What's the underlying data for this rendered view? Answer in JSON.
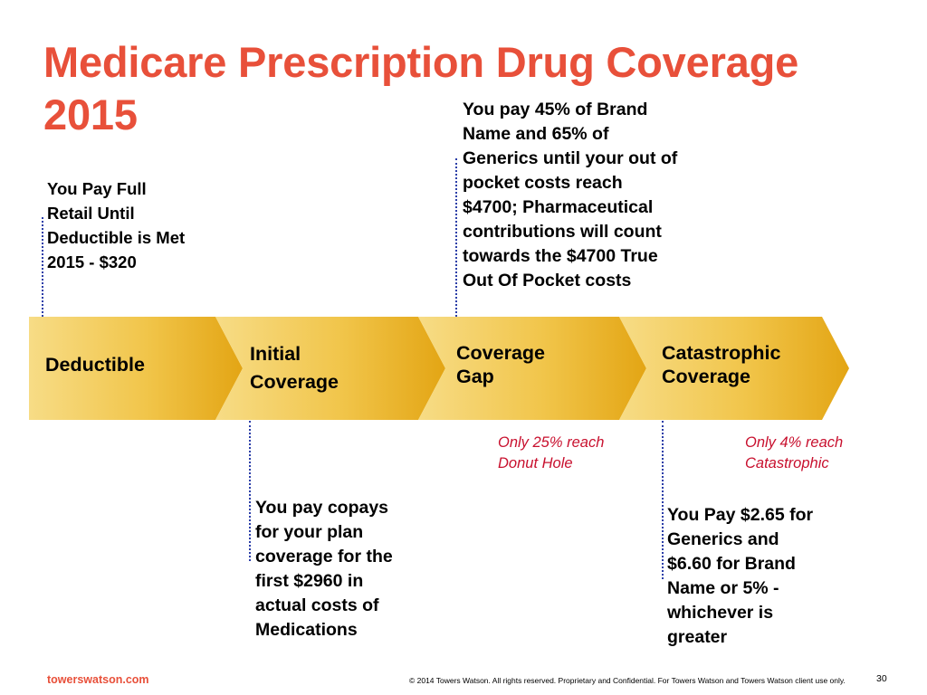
{
  "title": {
    "line1": "Medicare Prescription Drug Coverage",
    "line2": "2015"
  },
  "notes": {
    "deductible": [
      "You Pay Full",
      "Retail Until",
      "Deductible is Met",
      "2015 - $320"
    ],
    "coverage_gap": [
      "You pay 45% of Brand",
      "Name and  65% of",
      "Generics until your out of",
      "pocket costs reach",
      "$4700; Pharmaceutical",
      "contributions will count",
      "towards the $4700 True",
      "Out Of Pocket costs"
    ],
    "initial_coverage": [
      "You pay copays",
      "for your plan",
      "coverage for the",
      "first $2960 in",
      "actual costs of",
      "Medications"
    ],
    "catastrophic": [
      "You Pay $2.65 for",
      "Generics and",
      "$6.60 for Brand",
      "Name or 5% -",
      "whichever is",
      "greater"
    ]
  },
  "stats": {
    "donut_hole": [
      "Only 25% reach",
      "Donut Hole"
    ],
    "catastrophic": [
      "Only 4% reach",
      "Catastrophic"
    ]
  },
  "stages": [
    {
      "label_lines": [
        "Deductible"
      ]
    },
    {
      "label_lines": [
        "Initial",
        "Coverage"
      ]
    },
    {
      "label_lines": [
        "Coverage",
        "Gap"
      ]
    },
    {
      "label_lines": [
        "Catastrophic",
        "Coverage"
      ]
    }
  ],
  "colors": {
    "title": "#e8503a",
    "stat_text": "#c8102e",
    "arrow_light": "#f6d77a",
    "arrow_dark": "#e6a817",
    "connector": "#2b3ea8"
  },
  "footer": {
    "brand": "towerswatson.com",
    "copyright": "© 2014 Towers Watson. All rights reserved. Proprietary and Confidential. For Towers Watson and Towers Watson client use only.",
    "page": "30"
  }
}
